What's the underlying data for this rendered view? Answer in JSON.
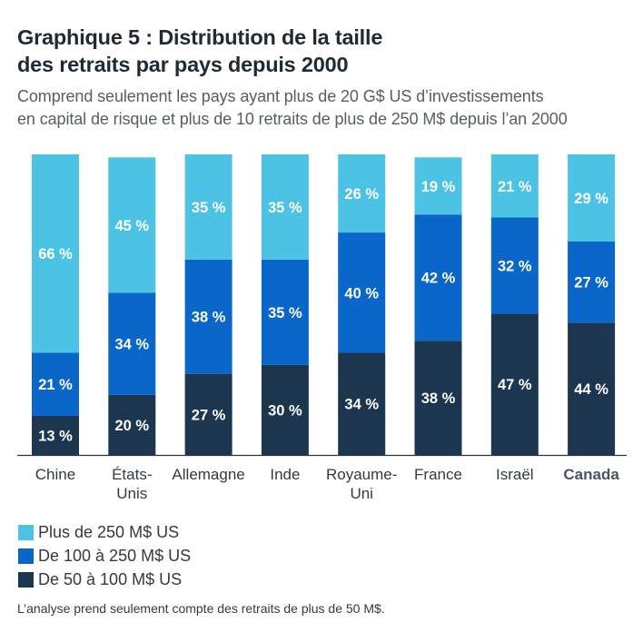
{
  "title_line1": "Graphique 5 : Distribution de la taille",
  "title_line2": "des retraits par pays depuis 2000",
  "subtitle_line1": "Comprend seulement les pays ayant plus de 20 G$ US d’investissements",
  "subtitle_line2": "en capital de risque et plus de 10 retraits de plus de 250 M$ depuis l’an 2000",
  "note": "L’analyse prend seulement compte des retraits de plus de 50 M$.",
  "colors": {
    "large": "#4cc3e4",
    "mid": "#0a66c8",
    "small": "#1d3650",
    "axis": "#333333",
    "label": "#ffffff"
  },
  "chart_data": {
    "type": "bar",
    "stacked": true,
    "percent": true,
    "categories": [
      {
        "lines": [
          "Chine"
        ],
        "bold": false
      },
      {
        "lines": [
          "États-",
          "Unis"
        ],
        "bold": false
      },
      {
        "lines": [
          "Allemagne"
        ],
        "bold": false
      },
      {
        "lines": [
          "Inde"
        ],
        "bold": false
      },
      {
        "lines": [
          "Royaume-",
          "Uni"
        ],
        "bold": false
      },
      {
        "lines": [
          "France"
        ],
        "bold": false
      },
      {
        "lines": [
          "Israël"
        ],
        "bold": false
      },
      {
        "lines": [
          "Canada"
        ],
        "bold": true
      }
    ],
    "series": [
      {
        "name": "De 50 à 100 M$ US",
        "color_key": "small",
        "values": [
          13,
          20,
          27,
          30,
          34,
          38,
          47,
          44
        ]
      },
      {
        "name": "De 100 à 250 M$ US",
        "color_key": "mid",
        "values": [
          21,
          34,
          38,
          35,
          40,
          42,
          32,
          27
        ]
      },
      {
        "name": "Plus de 250 M$ US",
        "color_key": "large",
        "values": [
          66,
          45,
          35,
          35,
          26,
          19,
          21,
          29
        ]
      }
    ],
    "legend_order": [
      2,
      1,
      0
    ],
    "legend_position": "bottom-left",
    "label_suffix": " %",
    "ylim": [
      0,
      100
    ],
    "grid": false
  }
}
